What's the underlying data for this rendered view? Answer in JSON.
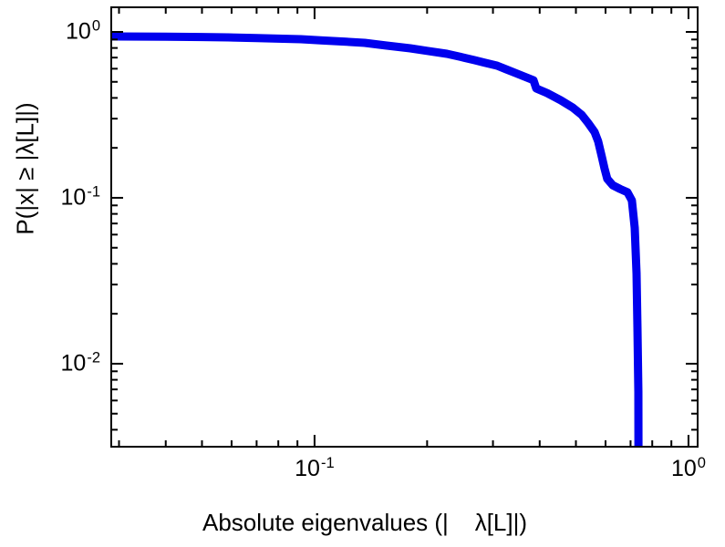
{
  "figure": {
    "background": "#ffffff",
    "frame_color": "#000000"
  },
  "chart_data": {
    "type": "line",
    "title": "",
    "xlabel": "Absolute eigenvalues (|    λ[L]|)",
    "ylabel": "P(|x| ≥ |λ[L]|)",
    "x_scale": "log",
    "y_scale": "log",
    "xlim": [
      0.0286,
      1.058
    ],
    "ylim": [
      0.00316,
      1.407
    ],
    "grid": false,
    "legend": null,
    "x_ticks": [
      {
        "value": 0.1,
        "base": "10",
        "exponent": "-1"
      },
      {
        "value": 1,
        "base": "10",
        "exponent": "0"
      }
    ],
    "y_ticks": [
      {
        "value": 1,
        "base": "10",
        "exponent": "0"
      },
      {
        "value": 0.1,
        "base": "10",
        "exponent": "-1"
      },
      {
        "value": 0.01,
        "base": "10",
        "exponent": "-2"
      }
    ],
    "series": [
      {
        "name": "eigenvalue-ccdf",
        "color": "#0000ee",
        "line_width": 9,
        "x": [
          0.0286,
          0.04,
          0.05,
          0.0586,
          0.07,
          0.08,
          0.0919,
          0.105,
          0.12,
          0.1362,
          0.155,
          0.1803,
          0.2,
          0.2258,
          0.2458,
          0.2672,
          0.285,
          0.3075,
          0.325,
          0.3441,
          0.3641,
          0.385,
          0.3915,
          0.4188,
          0.4555,
          0.4901,
          0.5183,
          0.5392,
          0.5608,
          0.5735,
          0.5865,
          0.5964,
          0.6065,
          0.6274,
          0.6563,
          0.6866,
          0.7059,
          0.7181,
          0.7262,
          0.7303,
          0.7345,
          0.735
        ],
        "y": [
          0.939,
          0.935,
          0.931,
          0.927,
          0.917,
          0.911,
          0.904,
          0.888,
          0.874,
          0.859,
          0.828,
          0.796,
          0.768,
          0.738,
          0.707,
          0.676,
          0.652,
          0.626,
          0.596,
          0.566,
          0.538,
          0.511,
          0.456,
          0.428,
          0.387,
          0.35,
          0.316,
          0.282,
          0.249,
          0.219,
          0.177,
          0.15,
          0.13,
          0.119,
          0.113,
          0.108,
          0.0963,
          0.0659,
          0.035,
          0.0164,
          0.00676,
          0.0031
        ]
      }
    ]
  }
}
